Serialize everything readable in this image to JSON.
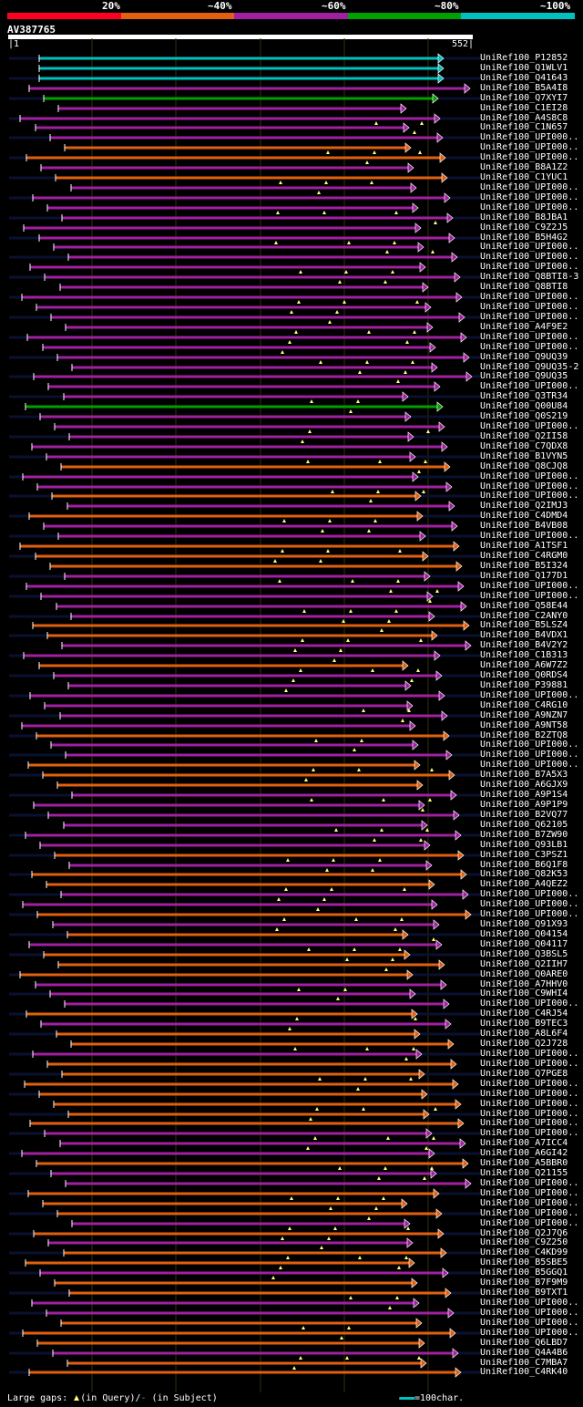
{
  "legend": {
    "percent_labels": [
      "20%",
      "~40%",
      "~60%",
      "~80%",
      "~100%"
    ],
    "colors": [
      "#ff0020",
      "#e06010",
      "#a020a0",
      "#00a000",
      "#00c0c0"
    ]
  },
  "query": {
    "id": "AV387765",
    "start": "1",
    "end": "552|"
  },
  "hits": [
    {
      "label": "UniRef100_P12852",
      "color": "#00c0c0"
    },
    {
      "label": "UniRef100_Q1WLV1",
      "color": "#00c0c0"
    },
    {
      "label": "UniRef100_Q41643",
      "color": "#00c0c0"
    },
    {
      "label": "UniRef100_B5A4I8",
      "color": "#a020a0"
    },
    {
      "label": "UniRef100_Q7XYI7",
      "color": "#00a000"
    },
    {
      "label": "UniRef100_C1EI28",
      "color": "#a020a0"
    },
    {
      "label": "UniRef100_A4S8C8",
      "color": "#a020a0"
    },
    {
      "label": "UniRef100_C1N657",
      "color": "#a020a0"
    },
    {
      "label": "UniRef100_UPI000..",
      "color": "#a020a0"
    },
    {
      "label": "UniRef100_UPI000..",
      "color": "#e06010"
    },
    {
      "label": "UniRef100_UPI000..",
      "color": "#e06010"
    },
    {
      "label": "UniRef100_B8A1Z2",
      "color": "#a020a0"
    },
    {
      "label": "UniRef100_C1YUC1",
      "color": "#e06010"
    },
    {
      "label": "UniRef100_UPI000..",
      "color": "#a020a0"
    },
    {
      "label": "UniRef100_UPI000..",
      "color": "#a020a0"
    },
    {
      "label": "UniRef100_UPI000..",
      "color": "#a020a0"
    },
    {
      "label": "UniRef100_B8JBA1",
      "color": "#a020a0"
    },
    {
      "label": "UniRef100_C9Z2J5",
      "color": "#a020a0"
    },
    {
      "label": "UniRef100_B5H4G2",
      "color": "#a020a0"
    },
    {
      "label": "UniRef100_UPI000..",
      "color": "#a020a0"
    },
    {
      "label": "UniRef100_UPI000..",
      "color": "#a020a0"
    },
    {
      "label": "UniRef100_UPI000..",
      "color": "#a020a0"
    },
    {
      "label": "UniRef100_Q8BTI8-3",
      "color": "#a020a0"
    },
    {
      "label": "UniRef100_Q8BTI8",
      "color": "#a020a0"
    },
    {
      "label": "UniRef100_UPI000..",
      "color": "#a020a0"
    },
    {
      "label": "UniRef100_UPI000..",
      "color": "#a020a0"
    },
    {
      "label": "UniRef100_UPI000..",
      "color": "#a020a0"
    },
    {
      "label": "UniRef100_A4F9E2",
      "color": "#a020a0"
    },
    {
      "label": "UniRef100_UPI000..",
      "color": "#a020a0"
    },
    {
      "label": "UniRef100_UPI000..",
      "color": "#a020a0"
    },
    {
      "label": "UniRef100_Q9UQ39",
      "color": "#a020a0"
    },
    {
      "label": "UniRef100_Q9UQ35-2",
      "color": "#a020a0"
    },
    {
      "label": "UniRef100_Q9UQ35",
      "color": "#a020a0"
    },
    {
      "label": "UniRef100_UPI000..",
      "color": "#a020a0"
    },
    {
      "label": "UniRef100_Q3TR34",
      "color": "#a020a0"
    },
    {
      "label": "UniRef100_Q00U84",
      "color": "#00a000"
    },
    {
      "label": "UniRef100_Q0S219",
      "color": "#a020a0"
    },
    {
      "label": "UniRef100_UPI000..",
      "color": "#a020a0"
    },
    {
      "label": "UniRef100_Q2II58",
      "color": "#a020a0"
    },
    {
      "label": "UniRef100_C7QDX8",
      "color": "#a020a0"
    },
    {
      "label": "UniRef100_B1VYN5",
      "color": "#a020a0"
    },
    {
      "label": "UniRef100_Q8CJQ8",
      "color": "#e06010"
    },
    {
      "label": "UniRef100_UPI000..",
      "color": "#a020a0"
    },
    {
      "label": "UniRef100_UPI000..",
      "color": "#a020a0"
    },
    {
      "label": "UniRef100_UPI000..",
      "color": "#e06010"
    },
    {
      "label": "UniRef100_Q2IMJ3",
      "color": "#a020a0"
    },
    {
      "label": "UniRef100_C4DMD4",
      "color": "#e06010"
    },
    {
      "label": "UniRef100_B4VB08",
      "color": "#a020a0"
    },
    {
      "label": "UniRef100_UPI000..",
      "color": "#a020a0"
    },
    {
      "label": "UniRef100_A1TSF1",
      "color": "#e06010"
    },
    {
      "label": "UniRef100_C4RGM0",
      "color": "#e06010"
    },
    {
      "label": "UniRef100_B5I324",
      "color": "#e06010"
    },
    {
      "label": "UniRef100_Q177D1",
      "color": "#a020a0"
    },
    {
      "label": "UniRef100_UPI000..",
      "color": "#a020a0"
    },
    {
      "label": "UniRef100_UPI000..",
      "color": "#a020a0"
    },
    {
      "label": "UniRef100_Q58E44",
      "color": "#a020a0"
    },
    {
      "label": "UniRef100_C2ANY0",
      "color": "#a020a0"
    },
    {
      "label": "UniRef100_B5LSZ4",
      "color": "#e06010"
    },
    {
      "label": "UniRef100_B4VDX1",
      "color": "#e06010"
    },
    {
      "label": "UniRef100_B4V2Y2",
      "color": "#a020a0"
    },
    {
      "label": "UniRef100_C1B313",
      "color": "#a020a0"
    },
    {
      "label": "UniRef100_A6W7Z2",
      "color": "#e06010"
    },
    {
      "label": "UniRef100_Q0RDS4",
      "color": "#a020a0"
    },
    {
      "label": "UniRef100_P39881",
      "color": "#a020a0"
    },
    {
      "label": "UniRef100_UPI000..",
      "color": "#a020a0"
    },
    {
      "label": "UniRef100_C4RG10",
      "color": "#a020a0"
    },
    {
      "label": "UniRef100_A9NZN7",
      "color": "#a020a0"
    },
    {
      "label": "UniRef100_A9NT58",
      "color": "#a020a0"
    },
    {
      "label": "UniRef100_B2ZTQ8",
      "color": "#e06010"
    },
    {
      "label": "UniRef100_UPI000..",
      "color": "#a020a0"
    },
    {
      "label": "UniRef100_UPI000..",
      "color": "#a020a0"
    },
    {
      "label": "UniRef100_UPI000..",
      "color": "#e06010"
    },
    {
      "label": "UniRef100_B7A5X3",
      "color": "#e06010"
    },
    {
      "label": "UniRef100_A6GJX9",
      "color": "#e06010"
    },
    {
      "label": "UniRef100_A9P1S4",
      "color": "#a020a0"
    },
    {
      "label": "UniRef100_A9P1P9",
      "color": "#a020a0"
    },
    {
      "label": "UniRef100_B2VQ77",
      "color": "#a020a0"
    },
    {
      "label": "UniRef100_Q62105",
      "color": "#a020a0"
    },
    {
      "label": "UniRef100_B7ZW90",
      "color": "#a020a0"
    },
    {
      "label": "UniRef100_Q93LB1",
      "color": "#a020a0"
    },
    {
      "label": "UniRef100_C3PSZ1",
      "color": "#e06010"
    },
    {
      "label": "UniRef100_B6Q1F8",
      "color": "#a020a0"
    },
    {
      "label": "UniRef100_Q82K53",
      "color": "#e06010"
    },
    {
      "label": "UniRef100_A4QEZ2",
      "color": "#e06010"
    },
    {
      "label": "UniRef100_UPI000..",
      "color": "#a020a0"
    },
    {
      "label": "UniRef100_UPI000..",
      "color": "#a020a0"
    },
    {
      "label": "UniRef100_UPI000..",
      "color": "#e06010"
    },
    {
      "label": "UniRef100_Q91X93",
      "color": "#a020a0"
    },
    {
      "label": "UniRef100_Q04154",
      "color": "#e06010"
    },
    {
      "label": "UniRef100_Q04117",
      "color": "#a020a0"
    },
    {
      "label": "UniRef100_Q3BSL5",
      "color": "#e06010"
    },
    {
      "label": "UniRef100_Q2IIH7",
      "color": "#e06010"
    },
    {
      "label": "UniRef100_Q0ARE0",
      "color": "#e06010"
    },
    {
      "label": "UniRef100_A7HHV0",
      "color": "#a020a0"
    },
    {
      "label": "UniRef100_C9WHI4",
      "color": "#a020a0"
    },
    {
      "label": "UniRef100_UPI000..",
      "color": "#a020a0"
    },
    {
      "label": "UniRef100_C4RJ54",
      "color": "#e06010"
    },
    {
      "label": "UniRef100_B9TEC3",
      "color": "#a020a0"
    },
    {
      "label": "UniRef100_A8L6F4",
      "color": "#e06010"
    },
    {
      "label": "UniRef100_Q2J728",
      "color": "#e06010"
    },
    {
      "label": "UniRef100_UPI000..",
      "color": "#a020a0"
    },
    {
      "label": "UniRef100_UPI000..",
      "color": "#e06010"
    },
    {
      "label": "UniRef100_Q7PGE8",
      "color": "#e06010"
    },
    {
      "label": "UniRef100_UPI000..",
      "color": "#e06010"
    },
    {
      "label": "UniRef100_UPI000..",
      "color": "#e06010"
    },
    {
      "label": "UniRef100_UPI000..",
      "color": "#e06010"
    },
    {
      "label": "UniRef100_UPI000..",
      "color": "#e06010"
    },
    {
      "label": "UniRef100_UPI000..",
      "color": "#e06010"
    },
    {
      "label": "UniRef100_UPI000..",
      "color": "#a020a0"
    },
    {
      "label": "UniRef100_A7ICC4",
      "color": "#a020a0"
    },
    {
      "label": "UniRef100_A6GI42",
      "color": "#a020a0"
    },
    {
      "label": "UniRef100_A5BBR0",
      "color": "#e06010"
    },
    {
      "label": "UniRef100_Q21155",
      "color": "#a020a0"
    },
    {
      "label": "UniRef100_UPI000..",
      "color": "#a020a0"
    },
    {
      "label": "UniRef100_UPI000..",
      "color": "#e06010"
    },
    {
      "label": "UniRef100_UPI000..",
      "color": "#e06010"
    },
    {
      "label": "UniRef100_UPI000..",
      "color": "#e06010"
    },
    {
      "label": "UniRef100_UPI000..",
      "color": "#a020a0"
    },
    {
      "label": "UniRef100_Q2J7Q6",
      "color": "#e06010"
    },
    {
      "label": "UniRef100_C9Z250",
      "color": "#a020a0"
    },
    {
      "label": "UniRef100_C4KD99",
      "color": "#e06010"
    },
    {
      "label": "UniRef100_B5SBE5",
      "color": "#e06010"
    },
    {
      "label": "UniRef100_B5GGQ1",
      "color": "#a020a0"
    },
    {
      "label": "UniRef100_B7F9M9",
      "color": "#e06010"
    },
    {
      "label": "UniRef100_B9TXT1",
      "color": "#e06010"
    },
    {
      "label": "UniRef100_UPI000..",
      "color": "#a020a0"
    },
    {
      "label": "UniRef100_UPI000..",
      "color": "#a020a0"
    },
    {
      "label": "UniRef100_UPI000..",
      "color": "#e06010"
    },
    {
      "label": "UniRef100_UPI000..",
      "color": "#e06010"
    },
    {
      "label": "UniRef100_Q6LBD7",
      "color": "#e06010"
    },
    {
      "label": "UniRef100_Q4A4B6",
      "color": "#a020a0"
    },
    {
      "label": "UniRef100_C7MBA7",
      "color": "#e06010"
    },
    {
      "label": "UniRef100_C4RK40",
      "color": "#e06010"
    }
  ],
  "footer": {
    "gaps_label": "Large gaps:",
    "in_query": "(in Query)/",
    "dash": "-",
    "in_subject": " (in Subject)",
    "scale": "=100char."
  }
}
